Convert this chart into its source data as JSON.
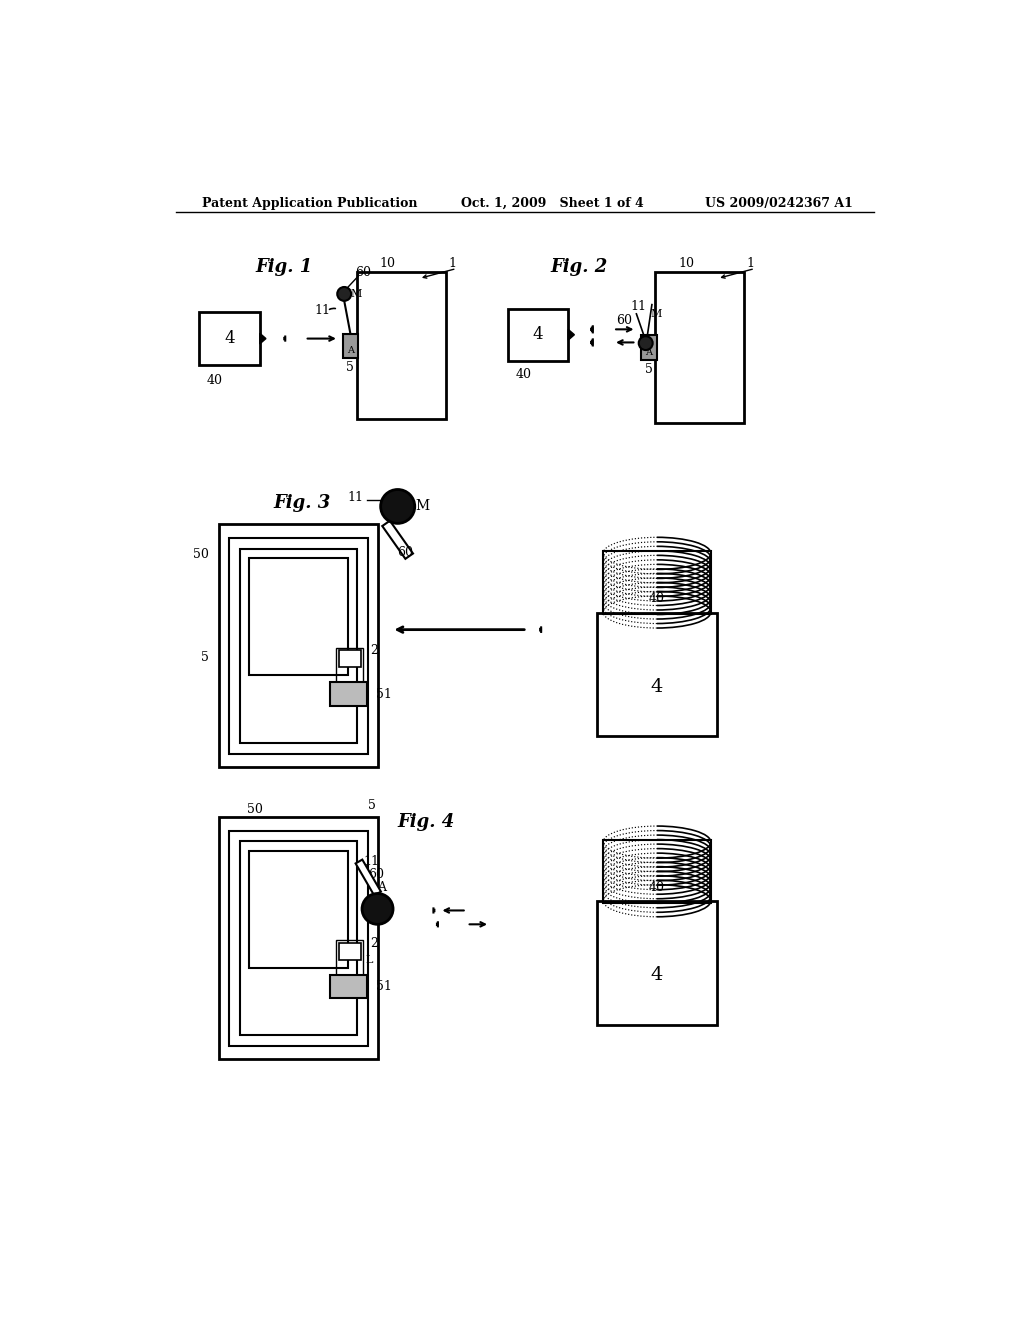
{
  "bg_color": "#ffffff",
  "header_left": "Patent Application Publication",
  "header_mid": "Oct. 1, 2009   Sheet 1 of 4",
  "header_right": "US 2009/0242367 A1",
  "fig1_title": "Fig. 1",
  "fig2_title": "Fig. 2",
  "fig3_title": "Fig. 3",
  "fig4_title": "Fig. 4"
}
